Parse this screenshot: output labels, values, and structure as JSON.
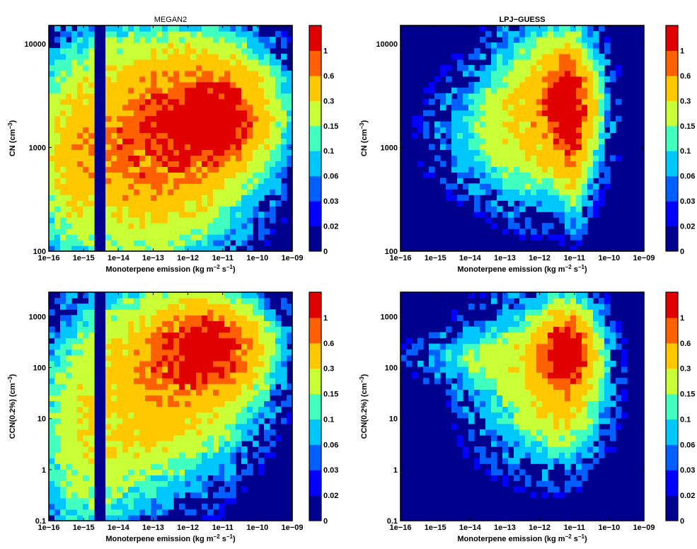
{
  "chart_data": [
    {
      "type": "heatmap",
      "title": "MEGAN2",
      "xlabel": "Monoterpene emission (kg m^-2 s^-1)",
      "ylabel": "CN (cm^-3)",
      "x_scale": "log",
      "y_scale": "log",
      "xlim": [
        1e-16,
        1e-09
      ],
      "ylim": [
        100,
        15000
      ],
      "xticks": [
        "1e−16",
        "1e−15",
        "1e−14",
        "1e−13",
        "1e−12",
        "1e−11",
        "1e−10",
        "1e−09"
      ],
      "yticks": [
        {
          "value": 100,
          "label": "100"
        },
        {
          "value": 1000,
          "label": "1000"
        },
        {
          "value": 10000,
          "label": "10000"
        }
      ],
      "colorbar_levels": [
        "0",
        "0.02",
        "0.03",
        "0.06",
        "0.1",
        "0.15",
        "0.3",
        "0.6",
        "1"
      ],
      "background_level": 0,
      "hotspots": [
        {
          "x": -11.3,
          "y": 3.32,
          "sx": 1.05,
          "sy": 0.34,
          "amp": 0.92
        },
        {
          "x": -11.0,
          "y": 3.25,
          "sx": 0.45,
          "sy": 0.18,
          "amp": 0.45
        },
        {
          "x": -12.8,
          "y": 3.05,
          "sx": 1.4,
          "sy": 0.55,
          "amp": 0.55
        },
        {
          "x": -14.2,
          "y": 3.0,
          "sx": 1.5,
          "sy": 0.6,
          "amp": 0.28
        },
        {
          "x": -15.3,
          "y": 2.85,
          "sx": 0.5,
          "sy": 0.45,
          "amp": 0.18
        }
      ],
      "stripe": {
        "x": -14.55,
        "halfwidth": 0.1
      }
    },
    {
      "type": "heatmap",
      "title": "LPJ−GUESS",
      "xlabel": "Monoterpene emission (kg m^-2 s^-1)",
      "ylabel": "CN (cm^-3)",
      "x_scale": "log",
      "y_scale": "log",
      "xlim": [
        1e-16,
        1e-09
      ],
      "ylim": [
        100,
        15000
      ],
      "xticks": [
        "1e−16",
        "1e−15",
        "1e−14",
        "1e−13",
        "1e−12",
        "1e−11",
        "1e−10",
        "1e−09"
      ],
      "yticks": [
        {
          "value": 100,
          "label": "100"
        },
        {
          "value": 1000,
          "label": "1000"
        },
        {
          "value": 10000,
          "label": "10000"
        }
      ],
      "colorbar_levels": [
        "0",
        "0.02",
        "0.03",
        "0.06",
        "0.1",
        "0.15",
        "0.3",
        "0.6",
        "1"
      ],
      "background_level": 0,
      "hotspots": [
        {
          "x": -11.2,
          "y": 3.45,
          "sx": 0.45,
          "sy": 0.32,
          "amp": 1.0
        },
        {
          "x": -11.05,
          "y": 3.0,
          "sx": 0.25,
          "sy": 0.35,
          "amp": 0.35
        },
        {
          "x": -12.0,
          "y": 3.3,
          "sx": 0.9,
          "sy": 0.45,
          "amp": 0.35
        },
        {
          "x": -13.3,
          "y": 3.15,
          "sx": 1.1,
          "sy": 0.35,
          "amp": 0.1
        }
      ]
    },
    {
      "type": "heatmap",
      "title": "",
      "xlabel": "Monoterpene emission (kg m^-2 s^-1)",
      "ylabel": "CCN(0.2%) (cm^-3)",
      "x_scale": "log",
      "y_scale": "log",
      "xlim": [
        1e-16,
        1e-09
      ],
      "ylim": [
        0.1,
        3000
      ],
      "xticks": [
        "1e−16",
        "1e−15",
        "1e−14",
        "1e−13",
        "1e−12",
        "1e−11",
        "1e−10",
        "1e−09"
      ],
      "yticks": [
        {
          "value": 0.1,
          "label": "0.1"
        },
        {
          "value": 1,
          "label": "1"
        },
        {
          "value": 10,
          "label": "10"
        },
        {
          "value": 100,
          "label": "100"
        },
        {
          "value": 1000,
          "label": "1000"
        }
      ],
      "colorbar_levels": [
        "0",
        "0.02",
        "0.03",
        "0.06",
        "0.1",
        "0.15",
        "0.3",
        "0.6",
        "1"
      ],
      "background_level": 0,
      "hotspots": [
        {
          "x": -11.4,
          "y": 2.4,
          "sx": 0.9,
          "sy": 0.5,
          "amp": 0.95
        },
        {
          "x": -12.3,
          "y": 1.9,
          "sx": 1.3,
          "sy": 0.9,
          "amp": 0.45
        },
        {
          "x": -13.6,
          "y": 1.2,
          "sx": 1.4,
          "sy": 1.2,
          "amp": 0.22
        },
        {
          "x": -15.0,
          "y": 0.5,
          "sx": 0.8,
          "sy": 1.3,
          "amp": 0.14
        }
      ],
      "stripe": {
        "x": -14.55,
        "halfwidth": 0.1
      }
    },
    {
      "type": "heatmap",
      "title": "",
      "xlabel": "Monoterpene emission (kg m^-2 s^-1)",
      "ylabel": "CCN(0.2%) (cm^-3)",
      "x_scale": "log",
      "y_scale": "log",
      "xlim": [
        1e-16,
        1e-09
      ],
      "ylim": [
        0.1,
        3000
      ],
      "xticks": [
        "1e−16",
        "1e−15",
        "1e−14",
        "1e−13",
        "1e−12",
        "1e−11",
        "1e−10",
        "1e−09"
      ],
      "yticks": [
        {
          "value": 0.1,
          "label": "0.1"
        },
        {
          "value": 1,
          "label": "1"
        },
        {
          "value": 10,
          "label": "10"
        },
        {
          "value": 100,
          "label": "100"
        },
        {
          "value": 1000,
          "label": "1000"
        }
      ],
      "colorbar_levels": [
        "0",
        "0.02",
        "0.03",
        "0.06",
        "0.1",
        "0.15",
        "0.3",
        "0.6",
        "1"
      ],
      "background_level": 0,
      "hotspots": [
        {
          "x": -11.2,
          "y": 2.35,
          "sx": 0.45,
          "sy": 0.45,
          "amp": 1.0
        },
        {
          "x": -11.35,
          "y": 1.7,
          "sx": 0.6,
          "sy": 0.8,
          "amp": 0.3
        },
        {
          "x": -12.2,
          "y": 1.8,
          "sx": 1.1,
          "sy": 0.9,
          "amp": 0.2
        },
        {
          "x": -13.5,
          "y": 2.2,
          "sx": 1.2,
          "sy": 0.3,
          "amp": 0.12
        }
      ]
    }
  ],
  "colormap": [
    "#00008f",
    "#0000ff",
    "#0060ff",
    "#00c8ff",
    "#40ffbf",
    "#c8ff37",
    "#ffc800",
    "#ff6000",
    "#e00000"
  ]
}
